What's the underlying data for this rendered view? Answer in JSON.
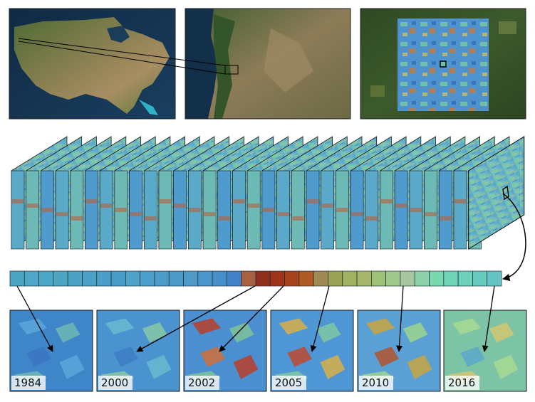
{
  "maps": {
    "overview": {
      "name": "united-states-map"
    },
    "regional": {
      "name": "pacific-northwest-map"
    },
    "study_area": {
      "name": "study-area-map"
    }
  },
  "stack": {
    "frame_count": 32
  },
  "timeline": {
    "colors": [
      "#4aa5c3",
      "#4ea7c6",
      "#4aa8c6",
      "#4aa6c3",
      "#49a3c2",
      "#4ba2c6",
      "#4b9ec8",
      "#4a9cc8",
      "#4ea3c9",
      "#4ba0c9",
      "#4c9bc9",
      "#4d99c8",
      "#4e9bca",
      "#4a95c9",
      "#4690c9",
      "#4382c6",
      "#a86043",
      "#8e2f1b",
      "#9e3518",
      "#a8421c",
      "#b05a24",
      "#9e8a52",
      "#9aa353",
      "#a2b360",
      "#a6b86a",
      "#9fc27a",
      "#a0c88a",
      "#a8c79e",
      "#8cd3a9",
      "#78d9b0",
      "#70d4b7",
      "#6cd1bc",
      "#66cbbd",
      "#62c4c4"
    ]
  },
  "snapshots": [
    {
      "year": "1984",
      "theme": "blue"
    },
    {
      "year": "2000",
      "theme": "blue2"
    },
    {
      "year": "2002",
      "theme": "red"
    },
    {
      "year": "2005",
      "theme": "mixed"
    },
    {
      "year": "2010",
      "theme": "mixed2"
    },
    {
      "year": "2016",
      "theme": "green"
    }
  ]
}
